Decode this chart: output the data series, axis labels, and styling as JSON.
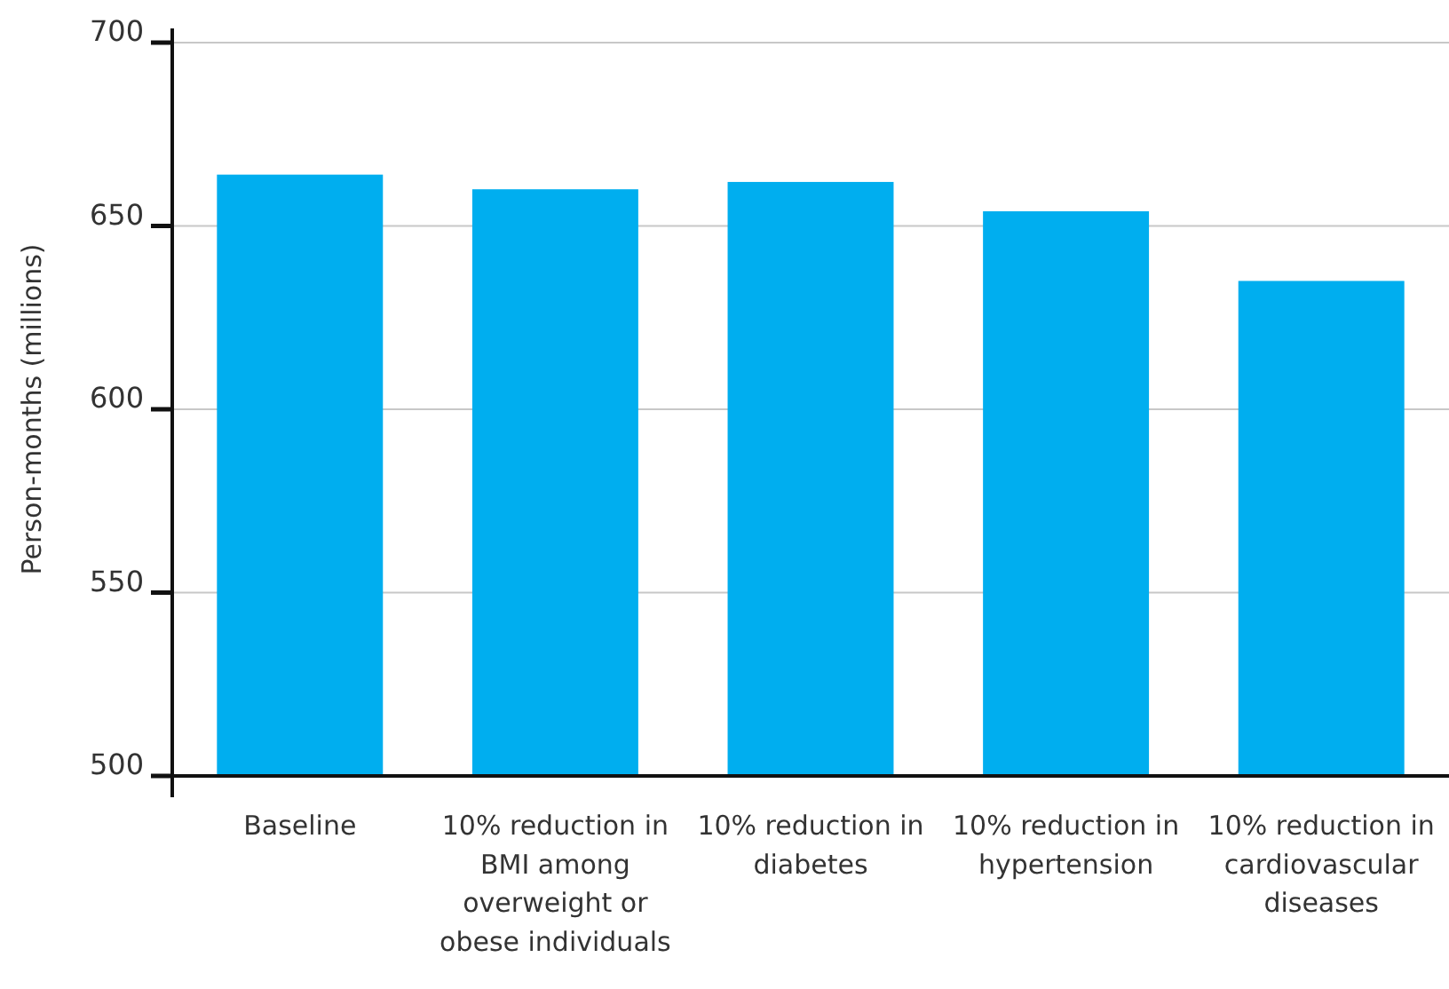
{
  "chart_data": {
    "type": "bar",
    "ylabel": "Person-months (millions)",
    "categories": [
      "Baseline",
      "10% reduction in BMI among overweight or obese individuals",
      "10% reduction in diabetes",
      "10% reduction in hypertension",
      "10% reduction in cardiovascular diseases"
    ],
    "values": [
      664,
      660,
      662,
      654,
      635
    ],
    "color": "#00aeef",
    "ylim": [
      500,
      700
    ],
    "yticks": [
      500,
      550,
      600,
      650,
      700
    ],
    "grid": "y"
  }
}
